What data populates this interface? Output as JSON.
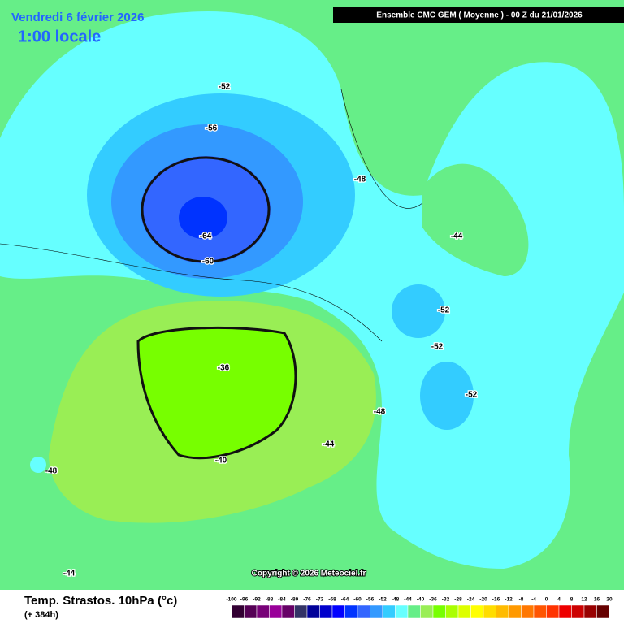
{
  "header": {
    "date": "Vendredi 6 février 2026",
    "time": "1:00 locale",
    "run": "Ensemble CMC GEM  ( Moyenne )  -  00 Z du 21/01/2026"
  },
  "contour_labels": [
    "-52",
    "-56",
    "-48",
    "-64",
    "-60",
    "-44",
    "-52",
    "-52",
    "-52",
    "-36",
    "-40",
    "-48",
    "-44",
    "-48",
    "-44"
  ],
  "copyright": "Copyright © 2026 Meteociel.fr",
  "legend": {
    "title": "Temp. Strastos. 10hPa (°c)",
    "subtitle": "(+ 384h)",
    "ticks": [
      -100,
      -96,
      -92,
      -88,
      -84,
      -80,
      -76,
      -72,
      -68,
      -64,
      -60,
      -56,
      -52,
      -48,
      -44,
      -40,
      -36,
      -32,
      -28,
      -24,
      -20,
      -16,
      -12,
      -8,
      -4,
      0,
      4,
      8,
      12,
      16,
      20
    ],
    "colors": [
      "#330033",
      "#550055",
      "#770077",
      "#990099",
      "#660066",
      "#333366",
      "#000099",
      "#0000cc",
      "#0000ff",
      "#0033ff",
      "#3366ff",
      "#3399ff",
      "#33ccff",
      "#66ffff",
      "#66ee88",
      "#99ee55",
      "#77ff00",
      "#aaff00",
      "#ddff00",
      "#ffff00",
      "#ffdd00",
      "#ffbb00",
      "#ff9900",
      "#ff7700",
      "#ff5500",
      "#ff3300",
      "#ee0000",
      "#cc0000",
      "#990000",
      "#660000"
    ]
  }
}
